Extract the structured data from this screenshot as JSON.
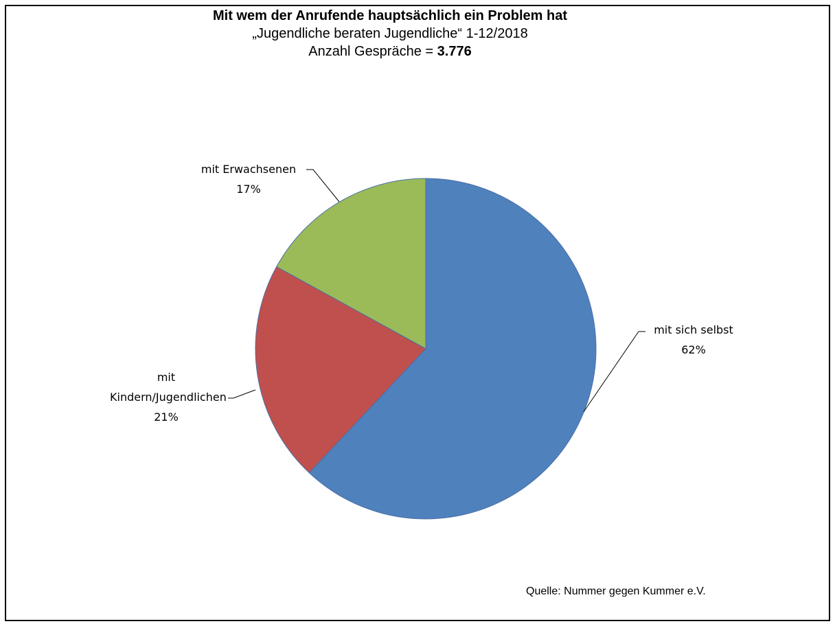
{
  "chart_data": {
    "type": "pie",
    "title": "Mit wem der Anrufende hauptsächlich ein Problem hat",
    "subtitle": "„Jugendliche beraten Jugendliche“ 1-12/2018",
    "count_label": "Anzahl Gespräche =",
    "count": "3.776",
    "source": "Quelle: Nummer gegen Kummer e.V.",
    "categories": [
      "mit sich selbst",
      "mit Kindern/Jugendlichen",
      "mit Erwachsenen"
    ],
    "values": [
      62,
      21,
      17
    ],
    "value_labels": [
      "62%",
      "21%",
      "17%"
    ],
    "colors": [
      "#4f81bd",
      "#c0504d",
      "#9bbb59"
    ]
  }
}
